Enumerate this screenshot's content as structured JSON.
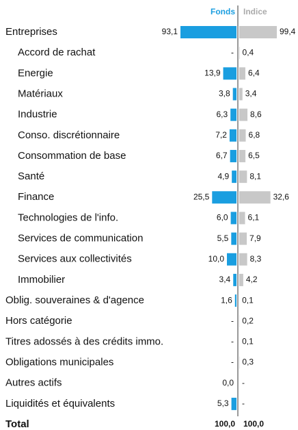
{
  "chart_data": {
    "type": "mirrored_bar",
    "categories": [
      "Entreprises",
      "Accord de rachat",
      "Energie",
      "Matériaux",
      "Industrie",
      "Conso. discrétionnaire",
      "Consommation de base",
      "Santé",
      "Finance",
      "Technologies de l'info.",
      "Services de communication",
      "Services aux collectivités",
      "Immobilier",
      "Oblig. souveraines & d'agence",
      "Hors catégorie",
      "Titres adossés à des crédits immo.",
      "Obligations municipales",
      "Autres actifs",
      "Liquidités et équivalents"
    ],
    "indent": [
      0,
      1,
      1,
      1,
      1,
      1,
      1,
      1,
      1,
      1,
      1,
      1,
      1,
      0,
      0,
      0,
      0,
      0,
      0
    ],
    "series": [
      {
        "name": "Fonds",
        "color": "#1a9ee0",
        "values": [
          93.1,
          null,
          13.9,
          3.8,
          6.3,
          7.2,
          6.7,
          4.9,
          25.5,
          6.0,
          5.5,
          10.0,
          3.4,
          1.6,
          null,
          null,
          null,
          0.0,
          5.3
        ],
        "value_labels": [
          "93,1",
          "-",
          "13,9",
          "3,8",
          "6,3",
          "7,2",
          "6,7",
          "4,9",
          "25,5",
          "6,0",
          "5,5",
          "10,0",
          "3,4",
          "1,6",
          "-",
          "-",
          "-",
          "0,0",
          "5,3"
        ]
      },
      {
        "name": "Indice",
        "color": "#c8c8c8",
        "values": [
          99.4,
          0.4,
          6.4,
          3.4,
          8.6,
          6.8,
          6.5,
          8.1,
          32.6,
          6.1,
          7.9,
          8.3,
          4.2,
          0.1,
          0.2,
          0.1,
          0.3,
          null,
          null
        ],
        "value_labels": [
          "99,4",
          "0,4",
          "6,4",
          "3,4",
          "8,6",
          "6,8",
          "6,5",
          "8,1",
          "32,6",
          "6,1",
          "7,9",
          "8,3",
          "4,2",
          "0,1",
          "0,2",
          "0,1",
          "0,3",
          "-",
          "-"
        ]
      }
    ],
    "total": {
      "label": "Total",
      "values": [
        100,
        100
      ],
      "value_labels": [
        "100,0",
        "100,0"
      ]
    }
  }
}
